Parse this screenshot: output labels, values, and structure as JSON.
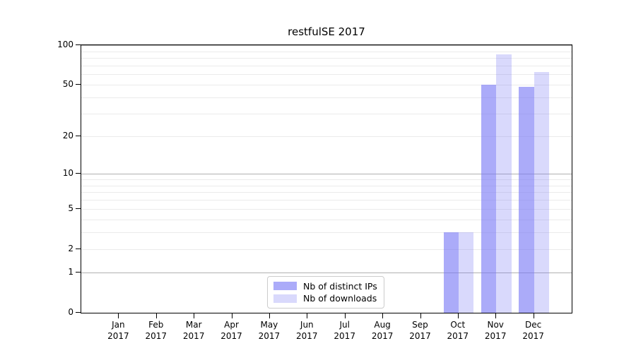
{
  "chart_data": {
    "type": "bar",
    "title": "restfulSE 2017",
    "xlabel": "",
    "ylabel": "",
    "categories": [
      "Jan",
      "Feb",
      "Mar",
      "Apr",
      "May",
      "Jun",
      "Jul",
      "Aug",
      "Sep",
      "Oct",
      "Nov",
      "Dec"
    ],
    "category_year": "2017",
    "series": [
      {
        "name": "Nb of distinct IPs",
        "color": "rgba(120,120,245,0.62)",
        "values": [
          0,
          0,
          0,
          0,
          0,
          0,
          0,
          0,
          0,
          3,
          50,
          48
        ]
      },
      {
        "name": "Nb of downloads",
        "color": "rgba(120,120,245,0.28)",
        "values": [
          0,
          0,
          0,
          0,
          0,
          0,
          0,
          0,
          0,
          3,
          85,
          63
        ]
      }
    ],
    "yscale": "log1p",
    "ylim": [
      0,
      100
    ],
    "yticks": [
      0,
      1,
      2,
      5,
      10,
      20,
      50,
      100
    ],
    "ytick_labels": [
      "0",
      "1",
      "2",
      "5",
      "10",
      "20",
      "50",
      "100"
    ],
    "major_gridlines": [
      1,
      10,
      100
    ],
    "minor_gridlines": [
      2,
      3,
      4,
      5,
      6,
      7,
      8,
      9,
      20,
      30,
      40,
      50,
      60,
      70,
      80,
      90
    ],
    "grid": "horizontal",
    "legend_position": "lower center",
    "bar_group_width": 0.8,
    "frame": "box"
  }
}
